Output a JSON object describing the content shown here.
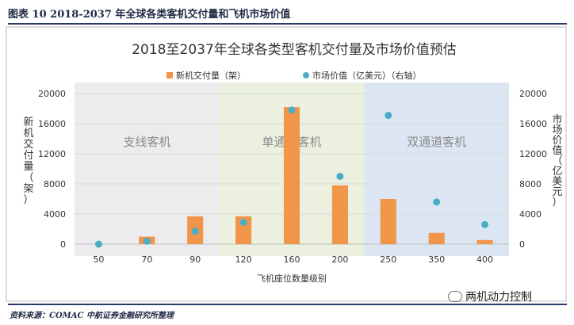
{
  "figure": {
    "caption": "图表 10 2018-2037 年全球各类客机交付量和飞机市场价值",
    "source": "资料来源：COMAC 中航证券金融研究所整理",
    "watermark": "两机动力控制"
  },
  "chart_data": {
    "type": "bar",
    "title": "2018至2037年全球各类型客机交付量及市场价值预估",
    "xlabel": "飞机座位数量级别",
    "ylabel": "新机交付量（架）",
    "ylabel_right": "市场价值（亿美元）",
    "categories": [
      "50",
      "70",
      "90",
      "120",
      "160",
      "200",
      "250",
      "350",
      "400"
    ],
    "ylim": [
      0,
      20000
    ],
    "ylim_right": [
      0,
      20000
    ],
    "yticks": [
      "0",
      "4000",
      "8000",
      "12000",
      "16000",
      "20000"
    ],
    "grid": true,
    "legend_position": "top",
    "series": [
      {
        "name": "新机交付量（架）",
        "kind": "bar",
        "axis": "left",
        "color": "#f0954a",
        "values": [
          0,
          1000,
          3700,
          3700,
          18200,
          7800,
          6000,
          1500,
          550
        ]
      },
      {
        "name": "市场价值（亿美元）（右轴）",
        "kind": "scatter",
        "axis": "right",
        "color": "#4bacc6",
        "values": [
          0,
          400,
          1700,
          2900,
          17800,
          9000,
          17100,
          5600,
          2600
        ]
      }
    ],
    "regions": [
      {
        "label": "支线客机",
        "from": "50",
        "to": "90",
        "color": "#ececee"
      },
      {
        "label": "单通道客机",
        "from": "120",
        "to": "200",
        "color": "#ebf1de"
      },
      {
        "label": "双通道客机",
        "from": "250",
        "to": "400",
        "color": "#dce6f2"
      }
    ]
  }
}
